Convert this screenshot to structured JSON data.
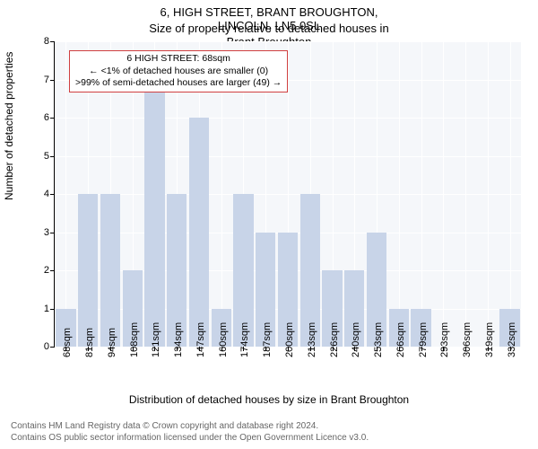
{
  "chart": {
    "type": "bar",
    "title_main": "6, HIGH STREET, BRANT BROUGHTON, LINCOLN, LN5 0SL",
    "title_sub": "Size of property relative to detached houses in Brant Broughton",
    "ylabel": "Number of detached properties",
    "xlabel": "Distribution of detached houses by size in Brant Broughton",
    "background_color": "#f5f7fa",
    "bar_color": "#c8d4e8",
    "grid_color": "#ffffff",
    "ylim": [
      0,
      8
    ],
    "ytick_step": 1,
    "categories": [
      "68sqm",
      "81sqm",
      "94sqm",
      "108sqm",
      "121sqm",
      "134sqm",
      "147sqm",
      "160sqm",
      "174sqm",
      "187sqm",
      "200sqm",
      "213sqm",
      "226sqm",
      "240sqm",
      "253sqm",
      "266sqm",
      "279sqm",
      "293sqm",
      "306sqm",
      "319sqm",
      "332sqm"
    ],
    "values": [
      1,
      4,
      4,
      2,
      7,
      4,
      6,
      1,
      4,
      3,
      3,
      4,
      2,
      2,
      3,
      1,
      1,
      0,
      0,
      0,
      1
    ],
    "bar_width": 0.9,
    "title_fontsize": 13,
    "label_fontsize": 12,
    "tick_fontsize": 11
  },
  "annotation": {
    "border_color": "#d04040",
    "line1": "6 HIGH STREET: 68sqm",
    "line2": "← <1% of detached houses are smaller (0)",
    "line3": ">99% of semi-detached houses are larger (49) →"
  },
  "footer": {
    "line1": "Contains HM Land Registry data © Crown copyright and database right 2024.",
    "line2": "Contains OS public sector information licensed under the Open Government Licence v3.0."
  }
}
